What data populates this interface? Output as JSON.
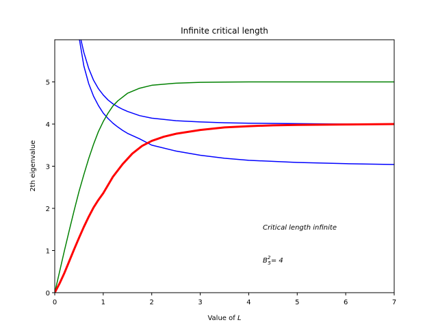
{
  "chart_data": {
    "type": "line",
    "title": "Infinite critical length",
    "xlabel_prefix": "Value of ",
    "xlabel_var": "L",
    "ylabel": "2th eigenvalue",
    "xlim": [
      0,
      7
    ],
    "ylim": [
      0,
      6
    ],
    "xticks": [
      "0",
      "1",
      "2",
      "3",
      "4",
      "5",
      "6",
      "7"
    ],
    "yticks": [
      "0",
      "1",
      "2",
      "3",
      "4",
      "5"
    ],
    "grid": false,
    "annotation": {
      "line1": "Critical length infinite",
      "line2_base": "B",
      "line2_sup": "2",
      "line2_sub": "5",
      "line2_rest": "= 4"
    },
    "colors": {
      "blue": "#0000ff",
      "green": "#008000",
      "red": "#ff0000"
    },
    "series": [
      {
        "color": "blue",
        "x": [
          0.51,
          0.6,
          0.7,
          0.8,
          0.9,
          1.0,
          1.1,
          1.2,
          1.3,
          1.4,
          1.5,
          1.75,
          2.0,
          2.5,
          3.0,
          3.5,
          4.0,
          5.0,
          6.0,
          7.0
        ],
        "y": [
          6.0,
          5.38,
          4.96,
          4.66,
          4.44,
          4.26,
          4.13,
          4.02,
          3.93,
          3.85,
          3.78,
          3.65,
          3.5,
          3.36,
          3.26,
          3.19,
          3.14,
          3.09,
          3.06,
          3.04
        ]
      },
      {
        "color": "blue",
        "x": [
          0.54,
          0.6,
          0.7,
          0.8,
          0.9,
          1.0,
          1.1,
          1.2,
          1.3,
          1.4,
          1.5,
          1.75,
          2.0,
          2.5,
          3.0,
          3.5,
          4.0,
          5.0,
          6.0,
          7.0
        ],
        "y": [
          6.0,
          5.7,
          5.32,
          5.04,
          4.84,
          4.69,
          4.57,
          4.48,
          4.41,
          4.35,
          4.3,
          4.2,
          4.14,
          4.08,
          4.05,
          4.03,
          4.02,
          4.01,
          4.0,
          4.0
        ]
      },
      {
        "color": "green",
        "x": [
          0,
          0.1,
          0.2,
          0.3,
          0.4,
          0.5,
          0.6,
          0.7,
          0.8,
          0.9,
          1.0,
          1.1,
          1.2,
          1.3,
          1.5,
          1.75,
          2.0,
          2.5,
          3.0,
          3.5,
          4.0,
          5.0,
          6.0,
          7.0
        ],
        "y": [
          0,
          0.5,
          1.0,
          1.48,
          1.95,
          2.4,
          2.8,
          3.18,
          3.52,
          3.82,
          4.06,
          4.26,
          4.43,
          4.55,
          4.73,
          4.85,
          4.92,
          4.97,
          4.99,
          4.995,
          5.0,
          5.0,
          5.0,
          5.0
        ]
      },
      {
        "color": "red",
        "x": [
          0,
          0.1,
          0.2,
          0.3,
          0.4,
          0.5,
          0.6,
          0.7,
          0.8,
          0.9,
          1.0,
          1.2,
          1.4,
          1.6,
          1.8,
          2.0,
          2.25,
          2.5,
          3.0,
          3.5,
          4.0,
          4.5,
          5.0,
          6.0,
          7.0
        ],
        "y": [
          0,
          0.22,
          0.47,
          0.75,
          1.03,
          1.3,
          1.56,
          1.8,
          2.02,
          2.2,
          2.36,
          2.75,
          3.05,
          3.3,
          3.48,
          3.6,
          3.7,
          3.77,
          3.86,
          3.92,
          3.95,
          3.97,
          3.98,
          3.99,
          4.0
        ],
        "thick": true
      }
    ]
  }
}
